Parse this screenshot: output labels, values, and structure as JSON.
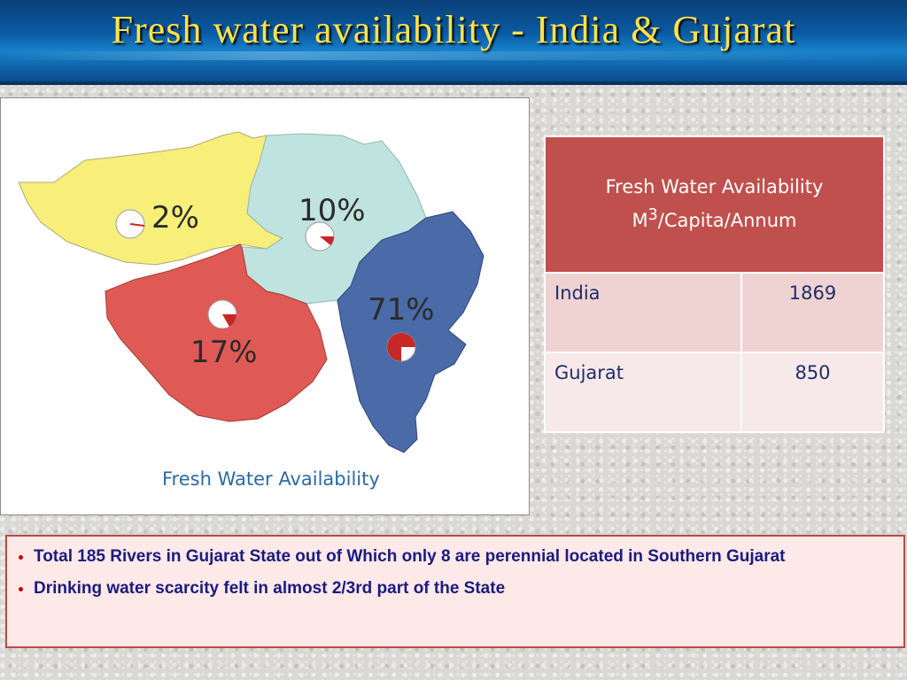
{
  "header": {
    "title": "Fresh water availability - India & Gujarat"
  },
  "map": {
    "caption": "Fresh Water Availability",
    "regions": [
      {
        "label": "2%",
        "color": "#f7ef7a",
        "share": 0.02
      },
      {
        "label": "10%",
        "color": "#bfe3df",
        "share": 0.1
      },
      {
        "label": "17%",
        "color": "#e05a55",
        "share": 0.17
      },
      {
        "label": "71%",
        "color": "#4b6aa8",
        "share": 0.71
      }
    ]
  },
  "table": {
    "header_line1": "Fresh Water Availability",
    "header_unit_prefix": "M",
    "header_unit_sup": "3",
    "header_unit_suffix": "/Capita/Annum",
    "rows": [
      {
        "name": "India",
        "value": "1869"
      },
      {
        "name": "Gujarat",
        "value": "850"
      }
    ]
  },
  "notes": [
    "Total 185 Rivers in Gujarat State out of Which only 8 are perennial located in Southern Gujarat",
    "Drinking water scarcity felt in almost 2/3rd part of the State"
  ]
}
